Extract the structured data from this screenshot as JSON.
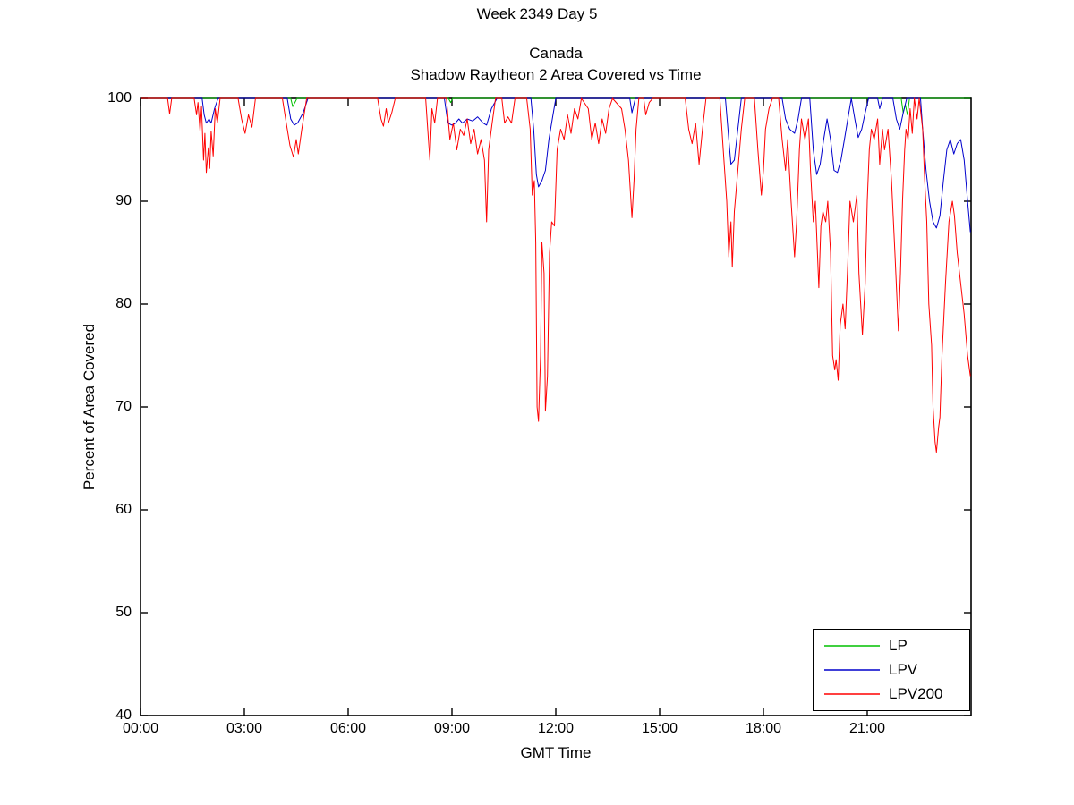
{
  "figure": {
    "suptitle": "Week 2349 Day 5",
    "title_line1": "Canada",
    "title_line2": "Shadow Raytheon 2 Area Covered vs Time",
    "xlabel": "GMT Time",
    "ylabel": "Percent of Area Covered"
  },
  "chart_data": {
    "type": "line",
    "title": "Canada - Shadow Raytheon 2 Area Covered vs Time",
    "suptitle": "Week 2349 Day 5",
    "xlabel": "GMT Time",
    "ylabel": "Percent of Area Covered",
    "xlim_hours": [
      0,
      24
    ],
    "ylim": [
      40,
      100
    ],
    "x_tick_hours": [
      0,
      3,
      6,
      9,
      12,
      15,
      18,
      21
    ],
    "x_ticks": [
      "00:00",
      "03:00",
      "06:00",
      "09:00",
      "12:00",
      "15:00",
      "18:00",
      "21:00"
    ],
    "y_ticks": [
      40,
      50,
      60,
      70,
      80,
      90,
      100
    ],
    "grid": false,
    "legend_position": "bottom-right",
    "series": [
      {
        "name": "LP",
        "color": "#00c000",
        "points": [
          [
            0,
            100
          ],
          [
            4.34,
            100
          ],
          [
            4.4,
            99.2
          ],
          [
            4.46,
            99.6
          ],
          [
            4.52,
            100
          ],
          [
            8.9,
            100
          ],
          [
            8.96,
            99.6
          ],
          [
            9.02,
            100
          ],
          [
            21.98,
            100
          ],
          [
            22.04,
            98.6
          ],
          [
            22.1,
            99.4
          ],
          [
            22.16,
            98.4
          ],
          [
            22.22,
            100
          ],
          [
            23.98,
            100
          ]
        ]
      },
      {
        "name": "LPV",
        "color": "#0000cc",
        "points": [
          [
            0,
            100
          ],
          [
            1.78,
            100
          ],
          [
            1.84,
            98.4
          ],
          [
            1.9,
            97.6
          ],
          [
            1.98,
            98
          ],
          [
            2.04,
            97.6
          ],
          [
            2.14,
            99
          ],
          [
            2.24,
            100
          ],
          [
            4.24,
            100
          ],
          [
            4.34,
            98
          ],
          [
            4.44,
            97.4
          ],
          [
            4.54,
            97.6
          ],
          [
            4.7,
            98.6
          ],
          [
            4.84,
            100
          ],
          [
            8.78,
            100
          ],
          [
            8.88,
            97.6
          ],
          [
            9,
            97.4
          ],
          [
            9.1,
            97.6
          ],
          [
            9.2,
            98
          ],
          [
            9.3,
            97.6
          ],
          [
            9.44,
            98
          ],
          [
            9.6,
            97.8
          ],
          [
            9.74,
            98.2
          ],
          [
            9.9,
            97.6
          ],
          [
            10,
            97.4
          ],
          [
            10.14,
            99
          ],
          [
            10.3,
            100
          ],
          [
            11.28,
            100
          ],
          [
            11.36,
            97
          ],
          [
            11.44,
            92.6
          ],
          [
            11.5,
            91.4
          ],
          [
            11.6,
            92
          ],
          [
            11.7,
            93
          ],
          [
            11.8,
            96
          ],
          [
            11.9,
            98
          ],
          [
            12,
            100
          ],
          [
            14.14,
            100
          ],
          [
            14.2,
            98.6
          ],
          [
            14.3,
            100
          ],
          [
            16.9,
            100
          ],
          [
            17,
            96
          ],
          [
            17.06,
            93.6
          ],
          [
            17.16,
            94
          ],
          [
            17.26,
            97
          ],
          [
            17.36,
            100
          ],
          [
            18.54,
            100
          ],
          [
            18.64,
            98
          ],
          [
            18.76,
            97
          ],
          [
            18.9,
            96.6
          ],
          [
            19,
            98
          ],
          [
            19.1,
            100
          ],
          [
            19.34,
            100
          ],
          [
            19.44,
            95
          ],
          [
            19.54,
            92.6
          ],
          [
            19.64,
            93.6
          ],
          [
            19.74,
            96
          ],
          [
            19.84,
            98
          ],
          [
            19.94,
            96
          ],
          [
            20.04,
            93
          ],
          [
            20.14,
            92.8
          ],
          [
            20.24,
            94
          ],
          [
            20.34,
            96
          ],
          [
            20.44,
            98
          ],
          [
            20.54,
            100
          ],
          [
            20.64,
            98
          ],
          [
            20.74,
            96.2
          ],
          [
            20.84,
            97
          ],
          [
            20.94,
            98.6
          ],
          [
            21.04,
            100
          ],
          [
            21.3,
            100
          ],
          [
            21.36,
            99
          ],
          [
            21.44,
            100
          ],
          [
            21.74,
            100
          ],
          [
            21.84,
            98
          ],
          [
            21.94,
            97
          ],
          [
            22.04,
            98.6
          ],
          [
            22.14,
            100
          ],
          [
            22.54,
            100
          ],
          [
            22.6,
            97
          ],
          [
            22.7,
            93
          ],
          [
            22.8,
            90
          ],
          [
            22.9,
            88
          ],
          [
            23,
            87.4
          ],
          [
            23.1,
            88.6
          ],
          [
            23.2,
            92
          ],
          [
            23.3,
            95
          ],
          [
            23.4,
            96
          ],
          [
            23.5,
            94.6
          ],
          [
            23.6,
            95.6
          ],
          [
            23.7,
            96
          ],
          [
            23.8,
            94
          ],
          [
            23.9,
            90
          ],
          [
            23.98,
            87
          ]
        ]
      },
      {
        "name": "LPV200",
        "color": "#ff0000",
        "points": [
          [
            0,
            100
          ],
          [
            0.78,
            100
          ],
          [
            0.84,
            98.5
          ],
          [
            0.9,
            100
          ],
          [
            1.55,
            100
          ],
          [
            1.62,
            98.4
          ],
          [
            1.66,
            99.6
          ],
          [
            1.72,
            96.8
          ],
          [
            1.76,
            99.2
          ],
          [
            1.82,
            94
          ],
          [
            1.86,
            96.6
          ],
          [
            1.9,
            92.8
          ],
          [
            1.96,
            95.2
          ],
          [
            2,
            93.2
          ],
          [
            2.04,
            96.8
          ],
          [
            2.1,
            94.4
          ],
          [
            2.16,
            99
          ],
          [
            2.22,
            97.6
          ],
          [
            2.3,
            100
          ],
          [
            2.82,
            100
          ],
          [
            2.92,
            98
          ],
          [
            3.02,
            96.6
          ],
          [
            3.12,
            98.4
          ],
          [
            3.22,
            97.2
          ],
          [
            3.32,
            100
          ],
          [
            4.1,
            100
          ],
          [
            4.22,
            97.4
          ],
          [
            4.32,
            95.4
          ],
          [
            4.42,
            94.3
          ],
          [
            4.5,
            96
          ],
          [
            4.56,
            94.6
          ],
          [
            4.66,
            97
          ],
          [
            4.8,
            100
          ],
          [
            6.85,
            100
          ],
          [
            6.95,
            98
          ],
          [
            7.02,
            97.3
          ],
          [
            7.1,
            99
          ],
          [
            7.16,
            97.6
          ],
          [
            7.26,
            98.6
          ],
          [
            7.36,
            100
          ],
          [
            8.24,
            100
          ],
          [
            8.3,
            97
          ],
          [
            8.36,
            94
          ],
          [
            8.42,
            99
          ],
          [
            8.5,
            97.6
          ],
          [
            8.58,
            100
          ],
          [
            8.84,
            100
          ],
          [
            8.94,
            96
          ],
          [
            9.04,
            97.6
          ],
          [
            9.14,
            95
          ],
          [
            9.24,
            97
          ],
          [
            9.34,
            96.4
          ],
          [
            9.44,
            98
          ],
          [
            9.54,
            95.6
          ],
          [
            9.64,
            97
          ],
          [
            9.74,
            94.6
          ],
          [
            9.84,
            96
          ],
          [
            9.94,
            94
          ],
          [
            10,
            88
          ],
          [
            10.06,
            95
          ],
          [
            10.16,
            97.6
          ],
          [
            10.26,
            100
          ],
          [
            10.44,
            100
          ],
          [
            10.52,
            97.6
          ],
          [
            10.62,
            98.2
          ],
          [
            10.72,
            97.6
          ],
          [
            10.82,
            100
          ],
          [
            11.16,
            100
          ],
          [
            11.26,
            97
          ],
          [
            11.32,
            90.6
          ],
          [
            11.38,
            92
          ],
          [
            11.42,
            86
          ],
          [
            11.46,
            70
          ],
          [
            11.5,
            68.6
          ],
          [
            11.56,
            75
          ],
          [
            11.6,
            86
          ],
          [
            11.66,
            83
          ],
          [
            11.7,
            69.6
          ],
          [
            11.76,
            73
          ],
          [
            11.82,
            85
          ],
          [
            11.88,
            88
          ],
          [
            11.96,
            87.6
          ],
          [
            12.04,
            95
          ],
          [
            12.14,
            97
          ],
          [
            12.24,
            96
          ],
          [
            12.34,
            98.4
          ],
          [
            12.44,
            96.6
          ],
          [
            12.54,
            99
          ],
          [
            12.64,
            98
          ],
          [
            12.74,
            100
          ],
          [
            12.94,
            99
          ],
          [
            13.04,
            96
          ],
          [
            13.14,
            97.6
          ],
          [
            13.24,
            95.6
          ],
          [
            13.34,
            98
          ],
          [
            13.44,
            96.6
          ],
          [
            13.54,
            99
          ],
          [
            13.64,
            100
          ],
          [
            13.9,
            99
          ],
          [
            14,
            97
          ],
          [
            14.1,
            94
          ],
          [
            14.2,
            88.4
          ],
          [
            14.26,
            92
          ],
          [
            14.32,
            97
          ],
          [
            14.4,
            100
          ],
          [
            14.54,
            100
          ],
          [
            14.6,
            98.4
          ],
          [
            14.7,
            99.6
          ],
          [
            14.8,
            100
          ],
          [
            15.74,
            100
          ],
          [
            15.84,
            97
          ],
          [
            15.94,
            95.6
          ],
          [
            16.04,
            97.6
          ],
          [
            16.14,
            93.6
          ],
          [
            16.24,
            97
          ],
          [
            16.34,
            100
          ],
          [
            16.74,
            100
          ],
          [
            16.84,
            95
          ],
          [
            16.94,
            90
          ],
          [
            17,
            84.6
          ],
          [
            17.06,
            88
          ],
          [
            17.1,
            83.6
          ],
          [
            17.16,
            89
          ],
          [
            17.26,
            93
          ],
          [
            17.36,
            97
          ],
          [
            17.46,
            100
          ],
          [
            17.74,
            100
          ],
          [
            17.84,
            95
          ],
          [
            17.94,
            90.6
          ],
          [
            18,
            93
          ],
          [
            18.06,
            97
          ],
          [
            18.16,
            99
          ],
          [
            18.26,
            100
          ],
          [
            18.44,
            100
          ],
          [
            18.54,
            96
          ],
          [
            18.64,
            93
          ],
          [
            18.7,
            96
          ],
          [
            18.8,
            90
          ],
          [
            18.9,
            84.6
          ],
          [
            18.96,
            88
          ],
          [
            19.04,
            95
          ],
          [
            19.1,
            98
          ],
          [
            19.2,
            96
          ],
          [
            19.3,
            98
          ],
          [
            19.36,
            93
          ],
          [
            19.44,
            88
          ],
          [
            19.5,
            90
          ],
          [
            19.6,
            81.6
          ],
          [
            19.66,
            87.6
          ],
          [
            19.72,
            89
          ],
          [
            19.8,
            88
          ],
          [
            19.86,
            90
          ],
          [
            19.94,
            85
          ],
          [
            20,
            75
          ],
          [
            20.06,
            73.6
          ],
          [
            20.1,
            74.6
          ],
          [
            20.16,
            72.6
          ],
          [
            20.22,
            78
          ],
          [
            20.3,
            80
          ],
          [
            20.36,
            77.6
          ],
          [
            20.44,
            84
          ],
          [
            20.5,
            90
          ],
          [
            20.6,
            88
          ],
          [
            20.7,
            90.6
          ],
          [
            20.76,
            83
          ],
          [
            20.86,
            77
          ],
          [
            20.94,
            82
          ],
          [
            21,
            90
          ],
          [
            21.06,
            95
          ],
          [
            21.12,
            97
          ],
          [
            21.2,
            96
          ],
          [
            21.3,
            98
          ],
          [
            21.36,
            93.6
          ],
          [
            21.44,
            97
          ],
          [
            21.5,
            95
          ],
          [
            21.6,
            97
          ],
          [
            21.7,
            92
          ],
          [
            21.8,
            85
          ],
          [
            21.9,
            77.4
          ],
          [
            21.96,
            83
          ],
          [
            22.02,
            90
          ],
          [
            22.08,
            95
          ],
          [
            22.12,
            97
          ],
          [
            22.18,
            96
          ],
          [
            22.24,
            99
          ],
          [
            22.3,
            96.6
          ],
          [
            22.36,
            100
          ],
          [
            22.44,
            98
          ],
          [
            22.5,
            100
          ],
          [
            22.6,
            97
          ],
          [
            22.66,
            92
          ],
          [
            22.72,
            88
          ],
          [
            22.78,
            80
          ],
          [
            22.86,
            76
          ],
          [
            22.9,
            70
          ],
          [
            22.96,
            66.6
          ],
          [
            23,
            65.6
          ],
          [
            23.06,
            68
          ],
          [
            23.1,
            69
          ],
          [
            23.16,
            75
          ],
          [
            23.26,
            82
          ],
          [
            23.36,
            88
          ],
          [
            23.46,
            90
          ],
          [
            23.52,
            88.6
          ],
          [
            23.6,
            85
          ],
          [
            23.7,
            82
          ],
          [
            23.8,
            79
          ],
          [
            23.9,
            75
          ],
          [
            23.98,
            73
          ]
        ]
      }
    ]
  }
}
